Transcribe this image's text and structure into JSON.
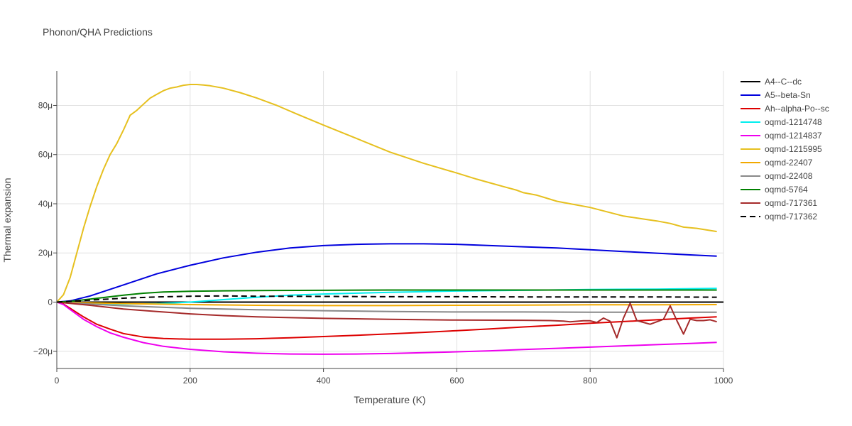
{
  "chart_data": {
    "type": "line",
    "title": "Phonon/QHA Predictions",
    "xlabel": "Temperature (K)",
    "ylabel": "Thermal expansion",
    "xlim": [
      0,
      1000
    ],
    "ylim": [
      -27,
      94
    ],
    "xticks": [
      0,
      200,
      400,
      600,
      800,
      1000
    ],
    "xtick_labels": [
      "0",
      "200",
      "400",
      "600",
      "800",
      "1000"
    ],
    "yticks": [
      -20,
      0,
      20,
      40,
      60,
      80
    ],
    "ytick_labels": [
      "−20μ",
      "0",
      "20μ",
      "40μ",
      "60μ",
      "80μ"
    ],
    "grid": true,
    "legend_position": "right",
    "series": [
      {
        "name": "A4--C--dc",
        "color": "#000000",
        "dash": "solid",
        "x": [
          0,
          1000
        ],
        "y": [
          0,
          0
        ]
      },
      {
        "name": "A5--beta-Sn",
        "color": "#0000dd",
        "dash": "solid",
        "x": [
          0,
          20,
          50,
          100,
          150,
          200,
          250,
          300,
          350,
          400,
          450,
          500,
          550,
          600,
          650,
          700,
          750,
          800,
          850,
          900,
          950,
          990
        ],
        "y": [
          0,
          0.5,
          2.5,
          7,
          11.5,
          15,
          18,
          20.3,
          22,
          23,
          23.5,
          23.7,
          23.7,
          23.5,
          23,
          22.5,
          22,
          21.3,
          20.6,
          19.9,
          19.2,
          18.7
        ]
      },
      {
        "name": "Ah--alpha-Po--sc",
        "color": "#dd0000",
        "dash": "solid",
        "x": [
          0,
          10,
          20,
          40,
          60,
          80,
          100,
          130,
          160,
          200,
          250,
          300,
          350,
          400,
          450,
          500,
          550,
          600,
          650,
          700,
          750,
          800,
          850,
          900,
          950,
          990
        ],
        "y": [
          0,
          -0.8,
          -2.5,
          -6,
          -9,
          -11,
          -12.8,
          -14.2,
          -14.8,
          -15.1,
          -15.1,
          -14.9,
          -14.5,
          -14,
          -13.5,
          -12.9,
          -12.3,
          -11.6,
          -10.9,
          -10.1,
          -9.4,
          -8.6,
          -7.9,
          -7.2,
          -6.5,
          -6
        ]
      },
      {
        "name": "oqmd-1214748",
        "color": "#00eeee",
        "dash": "solid",
        "x": [
          0,
          50,
          100,
          150,
          200,
          250,
          300,
          350,
          400,
          500,
          600,
          700,
          800,
          900,
          990
        ],
        "y": [
          0,
          -0.4,
          -0.8,
          -0.6,
          0,
          1,
          2,
          2.8,
          3.3,
          4,
          4.5,
          4.8,
          5.1,
          5.3,
          5.6
        ]
      },
      {
        "name": "oqmd-1214837",
        "color": "#ee00ee",
        "dash": "solid",
        "x": [
          0,
          10,
          20,
          40,
          60,
          80,
          100,
          130,
          160,
          200,
          250,
          300,
          350,
          400,
          450,
          500,
          550,
          600,
          650,
          700,
          750,
          800,
          850,
          900,
          950,
          990
        ],
        "y": [
          0,
          -1,
          -3,
          -7,
          -10,
          -12.5,
          -14.3,
          -16.5,
          -18,
          -19.2,
          -20.2,
          -20.8,
          -21.1,
          -21.2,
          -21.1,
          -20.9,
          -20.6,
          -20.2,
          -19.8,
          -19.3,
          -18.8,
          -18.3,
          -17.8,
          -17.3,
          -16.8,
          -16.4
        ]
      },
      {
        "name": "oqmd-1215995",
        "color": "#e6c01f",
        "dash": "solid",
        "x": [
          0,
          10,
          20,
          30,
          40,
          50,
          60,
          70,
          80,
          90,
          100,
          110,
          120,
          130,
          140,
          150,
          160,
          170,
          180,
          190,
          200,
          210,
          220,
          230,
          250,
          275,
          300,
          330,
          360,
          400,
          450,
          500,
          550,
          600,
          630,
          650,
          670,
          690,
          700,
          720,
          750,
          770,
          800,
          850,
          880,
          900,
          920,
          940,
          960,
          990
        ],
        "y": [
          0,
          3,
          10,
          20,
          30,
          39,
          47,
          54,
          60,
          64.5,
          70,
          76,
          78,
          80.5,
          83,
          84.5,
          86,
          87,
          87.5,
          88.2,
          88.5,
          88.5,
          88.3,
          88,
          87,
          85.2,
          83,
          80,
          76.5,
          72,
          66.5,
          61,
          56.5,
          52.5,
          50,
          48.5,
          47,
          45.5,
          44.5,
          43.5,
          41,
          40,
          38.5,
          35,
          33.8,
          33,
          32,
          30.5,
          30,
          28.7
        ]
      },
      {
        "name": "oqmd-22407",
        "color": "#f2a900",
        "dash": "solid",
        "x": [
          0,
          50,
          100,
          200,
          300,
          400,
          500,
          600,
          700,
          800,
          900,
          990
        ],
        "y": [
          0,
          -0.3,
          -0.6,
          -1,
          -1.3,
          -1.4,
          -1.4,
          -1.3,
          -1.2,
          -1.1,
          -1.1,
          -1
        ]
      },
      {
        "name": "oqmd-22408",
        "color": "#888888",
        "dash": "solid",
        "x": [
          0,
          50,
          100,
          200,
          300,
          400,
          500,
          600,
          700,
          800,
          900,
          990
        ],
        "y": [
          0,
          -0.8,
          -1.5,
          -2.5,
          -3.1,
          -3.5,
          -3.8,
          -4,
          -4,
          -4.1,
          -4.1,
          -4.1
        ]
      },
      {
        "name": "oqmd-5764",
        "color": "#008000",
        "dash": "solid",
        "x": [
          0,
          20,
          50,
          100,
          130,
          160,
          200,
          250,
          300,
          400,
          500,
          600,
          700,
          800,
          900,
          990
        ],
        "y": [
          0,
          0.3,
          1.2,
          2.8,
          3.6,
          4.1,
          4.4,
          4.6,
          4.7,
          4.8,
          4.9,
          4.9,
          4.9,
          4.9,
          4.9,
          4.9
        ]
      },
      {
        "name": "oqmd-717361",
        "color": "#a52a2a",
        "dash": "solid",
        "x": [
          0,
          50,
          100,
          150,
          200,
          250,
          300,
          400,
          500,
          600,
          700,
          740,
          760,
          770,
          790,
          800,
          810,
          820,
          830,
          840,
          850,
          860,
          870,
          890,
          910,
          920,
          930,
          940,
          950,
          960,
          970,
          980,
          990
        ],
        "y": [
          0,
          -1.3,
          -2.8,
          -3.8,
          -4.8,
          -5.5,
          -6,
          -6.6,
          -7,
          -7.3,
          -7.4,
          -7.5,
          -7.7,
          -8,
          -7.6,
          -7.6,
          -8.3,
          -6.5,
          -7.8,
          -14.5,
          -6.5,
          -0.5,
          -7.5,
          -9,
          -7,
          -1.5,
          -7.5,
          -13,
          -7,
          -7.5,
          -7.5,
          -7.2,
          -8
        ]
      },
      {
        "name": "oqmd-717362",
        "color": "#000000",
        "dash": "dash",
        "x": [
          0,
          50,
          100,
          150,
          200,
          250,
          300,
          400,
          500,
          600,
          700,
          800,
          900,
          990
        ],
        "y": [
          0,
          0.8,
          1.6,
          2.1,
          2.4,
          2.5,
          2.4,
          2.3,
          2.2,
          2.2,
          2.1,
          2.1,
          2.1,
          2
        ]
      }
    ]
  }
}
